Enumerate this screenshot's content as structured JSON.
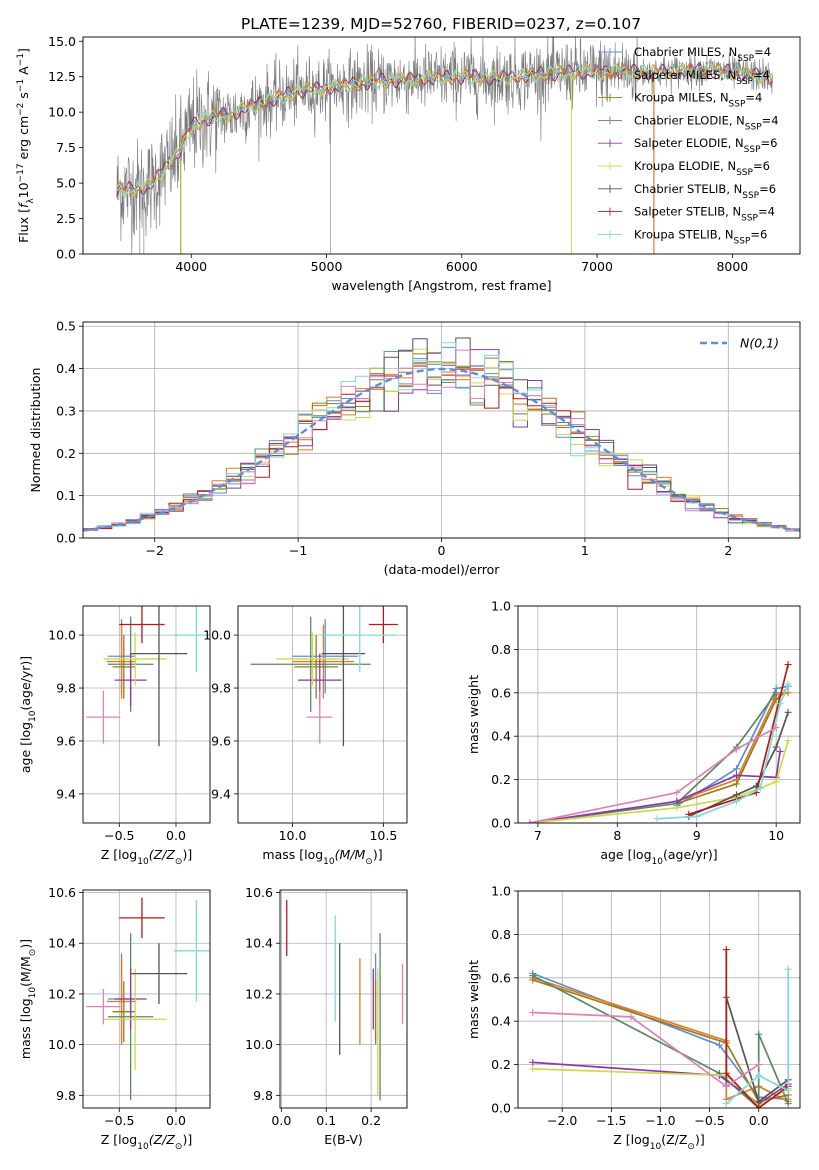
{
  "title": "PLATE=1239, MJD=52760, FIBERID=0237, z=0.107",
  "series_colors": {
    "Chabrier MILES": "#5b8fd6",
    "Salpeter MILES": "#e07b28",
    "Kroupa MILES": "#a07818",
    "Chabrier ELODIE": "#5a8a60",
    "Salpeter ELODIE": "#8a3aa8",
    "Kroupa ELODIE": "#d0d84a",
    "Chabrier STELIB": "#555555",
    "Salpeter STELIB": "#b81818",
    "Kroupa STELIB": "#80d8d8",
    "data": "#7a7a7a",
    "pink": "#e080b8"
  },
  "chart_data": [
    {
      "id": "spectrum",
      "type": "line",
      "xlabel": "wavelength [Angstrom, rest frame]",
      "ylabel_parts": [
        "Flux [",
        "f",
        "λ",
        "10",
        "−17",
        " erg cm",
        "−2",
        " s",
        "−1",
        " A",
        "−1",
        "]"
      ],
      "xlim": [
        3200,
        8500
      ],
      "ylim": [
        0,
        15.3
      ],
      "xticks": [
        4000,
        5000,
        6000,
        7000,
        8000
      ],
      "yticks": [
        0.0,
        2.5,
        5.0,
        7.5,
        10.0,
        12.5,
        15.0
      ],
      "legend_loc": "upper right",
      "legend": [
        {
          "prefix": "Chabrier MILES, N",
          "sub": "SSP",
          "suffix": "=4",
          "key": "Chabrier MILES"
        },
        {
          "prefix": "Salpeter MILES, N",
          "sub": "SSP",
          "suffix": "=4",
          "key": "Salpeter MILES"
        },
        {
          "prefix": "Kroupa MILES, N",
          "sub": "SSP",
          "suffix": "=4",
          "key": "Kroupa MILES"
        },
        {
          "prefix": "Chabrier ELODIE, N",
          "sub": "SSP",
          "suffix": "=4",
          "key": "Chabrier ELODIE"
        },
        {
          "prefix": "Salpeter ELODIE, N",
          "sub": "SSP",
          "suffix": "=6",
          "key": "Salpeter ELODIE"
        },
        {
          "prefix": "Kroupa ELODIE, N",
          "sub": "SSP",
          "suffix": "=6",
          "key": "Kroupa ELODIE"
        },
        {
          "prefix": "Chabrier STELIB, N",
          "sub": "SSP",
          "suffix": "=6",
          "key": "Chabrier STELIB"
        },
        {
          "prefix": "Salpeter STELIB, N",
          "sub": "SSP",
          "suffix": "=4",
          "key": "Salpeter STELIB"
        },
        {
          "prefix": "Kroupa STELIB, N",
          "sub": "SSP",
          "suffix": "=6",
          "key": "Kroupa STELIB"
        }
      ],
      "continuum_x": [
        3450,
        3600,
        3700,
        3800,
        3900,
        4000,
        4100,
        4200,
        4300,
        4400,
        4600,
        4800,
        5000,
        5200,
        5400,
        5600,
        5800,
        6000,
        6200,
        6400,
        6600,
        6800,
        7000,
        7200,
        7400,
        7600,
        7800,
        8000,
        8200,
        8300
      ],
      "continuum_y": [
        4.5,
        4.6,
        4.8,
        6.0,
        7.0,
        9.0,
        9.5,
        9.8,
        9.8,
        10.3,
        10.9,
        11.5,
        11.7,
        12.0,
        12.2,
        12.3,
        12.4,
        12.5,
        12.4,
        12.5,
        12.7,
        12.8,
        12.8,
        12.9,
        12.8,
        12.9,
        13.0,
        12.8,
        12.6,
        12.4
      ],
      "noise_amplitude": 1.3
    },
    {
      "id": "residual_hist",
      "type": "histogram",
      "xlabel": "(data-model)/error",
      "ylabel": "Normed distribution",
      "xlim": [
        -2.5,
        2.5
      ],
      "ylim": [
        0,
        0.51
      ],
      "xticks": [
        -2,
        -1,
        0,
        1,
        2
      ],
      "yticks": [
        0.0,
        0.1,
        0.2,
        0.3,
        0.4,
        0.5
      ],
      "bin_width": 0.1,
      "normal_label": "N(0,1)",
      "normal_color": "#5b8fd6",
      "legend_loc": "upper right"
    },
    {
      "id": "age_vs_Z",
      "type": "scatter",
      "xlabel_parts": [
        "Z [log",
        "10",
        "(Z/Z",
        "⊙",
        ")]"
      ],
      "ylabel_parts": [
        "age  [log",
        "10",
        "(age/yr)]"
      ],
      "xlim": [
        -0.82,
        0.3
      ],
      "ylim": [
        9.29,
        10.11
      ],
      "xticks": [
        -0.5,
        0.0
      ],
      "yticks": [
        9.4,
        9.6,
        9.8,
        10.0
      ],
      "points": [
        {
          "key": "Chabrier MILES",
          "x": -0.48,
          "xerr": 0.12,
          "y": 9.92,
          "yerr": 0.14
        },
        {
          "key": "Salpeter MILES",
          "x": -0.48,
          "xerr": 0.13,
          "y": 9.9,
          "yerr": 0.14
        },
        {
          "key": "Kroupa MILES",
          "x": -0.46,
          "xerr": 0.1,
          "y": 9.88,
          "yerr": 0.12
        },
        {
          "key": "Chabrier ELODIE",
          "x": -0.4,
          "xerr": 0.2,
          "y": 9.89,
          "yerr": 0.18
        },
        {
          "key": "Salpeter ELODIE",
          "x": -0.4,
          "xerr": 0.14,
          "y": 9.83,
          "yerr": 0.1
        },
        {
          "key": "Kroupa ELODIE",
          "x": -0.36,
          "xerr": 0.28,
          "y": 9.91,
          "yerr": 0.1
        },
        {
          "key": "Chabrier STELIB",
          "x": -0.15,
          "xerr": 0.25,
          "y": 9.93,
          "yerr": 0.35
        },
        {
          "key": "Salpeter STELIB",
          "x": -0.3,
          "xerr": 0.2,
          "y": 10.04,
          "yerr": 0.07
        },
        {
          "key": "Kroupa STELIB",
          "x": 0.18,
          "xerr": 0.2,
          "y": 10.0,
          "yerr": 0.14
        },
        {
          "key": "pink",
          "x": -0.64,
          "xerr": 0.15,
          "y": 9.69,
          "yerr": 0.1
        }
      ]
    },
    {
      "id": "age_vs_mass",
      "type": "scatter",
      "xlabel_parts": [
        "mass [log",
        "10",
        "(M/M",
        "⊙",
        ")]"
      ],
      "ylabel_parts": [],
      "xlim": [
        9.7,
        10.63
      ],
      "ylim": [
        9.29,
        10.11
      ],
      "xticks": [
        10.0,
        10.5
      ],
      "yticks": [
        9.4,
        9.6,
        9.8,
        10.0
      ],
      "points": [
        {
          "key": "Chabrier MILES",
          "x": 10.18,
          "xerr": 0.18,
          "y": 9.92,
          "yerr": 0.14
        },
        {
          "key": "Salpeter MILES",
          "x": 10.17,
          "xerr": 0.17,
          "y": 9.9,
          "yerr": 0.14
        },
        {
          "key": "Kroupa MILES",
          "x": 10.13,
          "xerr": 0.12,
          "y": 9.88,
          "yerr": 0.12
        },
        {
          "key": "Chabrier ELODIE",
          "x": 10.1,
          "xerr": 0.33,
          "y": 9.89,
          "yerr": 0.18
        },
        {
          "key": "Salpeter ELODIE",
          "x": 10.15,
          "xerr": 0.12,
          "y": 9.83,
          "yerr": 0.1
        },
        {
          "key": "Kroupa ELODIE",
          "x": 10.11,
          "xerr": 0.2,
          "y": 9.91,
          "yerr": 0.1
        },
        {
          "key": "Chabrier STELIB",
          "x": 10.28,
          "xerr": 0.12,
          "y": 9.93,
          "yerr": 0.35
        },
        {
          "key": "Salpeter STELIB",
          "x": 10.5,
          "xerr": 0.08,
          "y": 10.04,
          "yerr": 0.07
        },
        {
          "key": "Kroupa STELIB",
          "x": 10.37,
          "xerr": 0.2,
          "y": 10.0,
          "yerr": 0.14
        },
        {
          "key": "pink",
          "x": 10.15,
          "xerr": 0.07,
          "y": 9.69,
          "yerr": 0.1
        }
      ]
    },
    {
      "id": "massweight_vs_age",
      "type": "line",
      "xlabel_parts": [
        "age  [log",
        "10",
        "(age/yr)]"
      ],
      "ylabel": "mass weight",
      "xlim": [
        6.75,
        10.3
      ],
      "ylim": [
        0,
        1.0
      ],
      "xticks": [
        7,
        8,
        9,
        10
      ],
      "yticks": [
        0.0,
        0.2,
        0.4,
        0.6,
        0.8,
        1.0
      ],
      "series": [
        {
          "key": "Chabrier MILES",
          "x": [
            8.75,
            9.5,
            10.0,
            10.15
          ],
          "y": [
            0.08,
            0.25,
            0.62,
            0.63
          ]
        },
        {
          "key": "Salpeter MILES",
          "x": [
            8.75,
            9.5,
            10.0,
            10.15
          ],
          "y": [
            0.1,
            0.2,
            0.59,
            0.6
          ]
        },
        {
          "key": "Kroupa MILES",
          "x": [
            8.75,
            9.5,
            10.0,
            10.1
          ],
          "y": [
            0.09,
            0.18,
            0.57,
            0.6
          ]
        },
        {
          "key": "Chabrier ELODIE",
          "x": [
            6.9,
            8.75,
            9.5,
            10.0
          ],
          "y": [
            0.0,
            0.09,
            0.35,
            0.6
          ]
        },
        {
          "key": "Salpeter ELODIE",
          "x": [
            6.9,
            8.75,
            9.5,
            10.0,
            10.05
          ],
          "y": [
            0.0,
            0.1,
            0.22,
            0.21,
            0.33
          ]
        },
        {
          "key": "Kroupa ELODIE",
          "x": [
            6.9,
            8.75,
            9.5,
            10.0,
            10.15
          ],
          "y": [
            0.0,
            0.07,
            0.12,
            0.19,
            0.38
          ]
        },
        {
          "key": "Chabrier STELIB",
          "x": [
            8.9,
            9.5,
            9.75,
            10.0,
            10.15
          ],
          "y": [
            0.03,
            0.13,
            0.17,
            0.35,
            0.51
          ]
        },
        {
          "key": "Salpeter STELIB",
          "x": [
            8.9,
            9.75,
            10.15
          ],
          "y": [
            0.04,
            0.14,
            0.73
          ]
        },
        {
          "key": "Kroupa STELIB",
          "x": [
            8.5,
            9.0,
            9.5,
            9.8,
            10.05,
            10.15
          ],
          "y": [
            0.02,
            0.03,
            0.1,
            0.16,
            0.55,
            0.64
          ]
        },
        {
          "key": "pink",
          "x": [
            6.9,
            8.75,
            9.5,
            10.0
          ],
          "y": [
            0.0,
            0.14,
            0.34,
            0.44
          ]
        }
      ]
    },
    {
      "id": "mass_vs_Z",
      "type": "scatter",
      "xlabel_parts": [
        "Z [log",
        "10",
        "(Z/Z",
        "⊙",
        ")]"
      ],
      "ylabel_parts": [
        "mass [log",
        "10",
        "(M/M",
        "⊙",
        ")]"
      ],
      "xlim": [
        -0.82,
        0.3
      ],
      "ylim": [
        9.75,
        10.61
      ],
      "xticks": [
        -0.5,
        0.0
      ],
      "yticks": [
        9.8,
        10.0,
        10.2,
        10.4,
        10.6
      ],
      "points": [
        {
          "key": "Chabrier MILES",
          "x": -0.48,
          "xerr": 0.12,
          "y": 10.18,
          "yerr": 0.18
        },
        {
          "key": "Salpeter MILES",
          "x": -0.48,
          "xerr": 0.13,
          "y": 10.17,
          "yerr": 0.17
        },
        {
          "key": "Kroupa MILES",
          "x": -0.46,
          "xerr": 0.1,
          "y": 10.13,
          "yerr": 0.12
        },
        {
          "key": "Chabrier ELODIE",
          "x": -0.4,
          "xerr": 0.2,
          "y": 10.11,
          "yerr": 0.33
        },
        {
          "key": "Salpeter ELODIE",
          "x": -0.4,
          "xerr": 0.14,
          "y": 10.18,
          "yerr": 0.12
        },
        {
          "key": "Kroupa ELODIE",
          "x": -0.36,
          "xerr": 0.28,
          "y": 10.1,
          "yerr": 0.2
        },
        {
          "key": "Chabrier STELIB",
          "x": -0.15,
          "xerr": 0.25,
          "y": 10.28,
          "yerr": 0.12
        },
        {
          "key": "Salpeter STELIB",
          "x": -0.3,
          "xerr": 0.2,
          "y": 10.5,
          "yerr": 0.08
        },
        {
          "key": "Kroupa STELIB",
          "x": 0.18,
          "xerr": 0.2,
          "y": 10.37,
          "yerr": 0.2
        },
        {
          "key": "pink",
          "x": -0.64,
          "xerr": 0.15,
          "y": 10.15,
          "yerr": 0.07
        }
      ]
    },
    {
      "id": "mass_vs_ebv",
      "type": "scatter",
      "xlabel_parts": [
        "E(B-V)"
      ],
      "ylabel_parts": [],
      "xlim": [
        -0.003,
        0.28
      ],
      "ylim": [
        9.75,
        10.61
      ],
      "xticks": [
        0.0,
        0.1,
        0.2
      ],
      "yticks": [
        9.8,
        10.0,
        10.2,
        10.4,
        10.6
      ],
      "points": [
        {
          "key": "Chabrier MILES",
          "x": 0.21,
          "xerr": 0,
          "y": 10.18,
          "yerr": 0.18
        },
        {
          "key": "Salpeter MILES",
          "x": 0.175,
          "xerr": 0,
          "y": 10.17,
          "yerr": 0.17
        },
        {
          "key": "Kroupa MILES",
          "x": 0.21,
          "xerr": 0,
          "y": 10.13,
          "yerr": 0.12
        },
        {
          "key": "Chabrier ELODIE",
          "x": 0.22,
          "xerr": 0,
          "y": 10.11,
          "yerr": 0.33
        },
        {
          "key": "Salpeter ELODIE",
          "x": 0.205,
          "xerr": 0,
          "y": 10.18,
          "yerr": 0.12
        },
        {
          "key": "Kroupa ELODIE",
          "x": 0.215,
          "xerr": 0,
          "y": 10.05,
          "yerr": 0.25
        },
        {
          "key": "Chabrier STELIB",
          "x": 0.13,
          "xerr": 0,
          "y": 10.18,
          "yerr": 0.22
        },
        {
          "key": "Salpeter STELIB",
          "x": 0.012,
          "xerr": 0,
          "y": 10.46,
          "yerr": 0.11
        },
        {
          "key": "Kroupa STELIB",
          "x": 0.12,
          "xerr": 0,
          "y": 10.3,
          "yerr": 0.21
        },
        {
          "key": "pink",
          "x": 0.27,
          "xerr": 0,
          "y": 10.2,
          "yerr": 0.12
        }
      ]
    },
    {
      "id": "massweight_vs_Z",
      "type": "line",
      "xlabel_parts": [
        "Z [log",
        "10",
        "(Z/Z",
        "⊙",
        ")]"
      ],
      "ylabel": "mass weight",
      "xlim": [
        -2.45,
        0.42
      ],
      "ylim": [
        0,
        1.0
      ],
      "xticks": [
        -2.0,
        -1.5,
        -1.0,
        -0.5,
        0.0
      ],
      "yticks": [
        0.0,
        0.2,
        0.4,
        0.6,
        0.8,
        1.0
      ],
      "series": [
        {
          "key": "Chabrier MILES",
          "x": [
            -2.3,
            -0.4,
            0.0,
            0.3
          ],
          "y": [
            0.62,
            0.29,
            0.05,
            0.04
          ]
        },
        {
          "key": "Salpeter MILES",
          "x": [
            -2.3,
            -0.33,
            -0.33,
            0.0,
            0.3
          ],
          "y": [
            0.6,
            0.31,
            0.04,
            0.1,
            0.03
          ]
        },
        {
          "key": "Kroupa MILES",
          "x": [
            -2.3,
            -0.33,
            0.0,
            0.3
          ],
          "y": [
            0.59,
            0.3,
            0.03,
            0.06
          ]
        },
        {
          "key": "Chabrier ELODIE",
          "x": [
            -2.3,
            -0.4,
            0.0,
            0.0,
            0.3
          ],
          "y": [
            0.61,
            0.16,
            0.0,
            0.34,
            0.02
          ]
        },
        {
          "key": "Salpeter ELODIE",
          "x": [
            -2.3,
            -0.4,
            0.0,
            0.3
          ],
          "y": [
            0.21,
            0.15,
            0.02,
            0.11
          ]
        },
        {
          "key": "Kroupa ELODIE",
          "x": [
            -2.3,
            -0.33,
            0.0,
            0.3
          ],
          "y": [
            0.18,
            0.15,
            0.01,
            0.09
          ]
        },
        {
          "key": "Chabrier STELIB",
          "x": [
            -0.33,
            -0.33,
            0.0,
            0.3
          ],
          "y": [
            0.1,
            0.51,
            0.03,
            0.13
          ]
        },
        {
          "key": "Salpeter STELIB",
          "x": [
            -0.33,
            -0.33,
            0.0,
            0.3
          ],
          "y": [
            0.73,
            0.16,
            0.0,
            0.1
          ]
        },
        {
          "key": "Kroupa STELIB",
          "x": [
            -0.33,
            0.0,
            0.3,
            0.3
          ],
          "y": [
            0.02,
            0.15,
            0.08,
            0.64
          ]
        },
        {
          "key": "pink",
          "x": [
            -2.3,
            -1.3,
            -0.33,
            0.0
          ],
          "y": [
            0.44,
            0.42,
            0.1,
            0.2
          ]
        }
      ]
    }
  ]
}
